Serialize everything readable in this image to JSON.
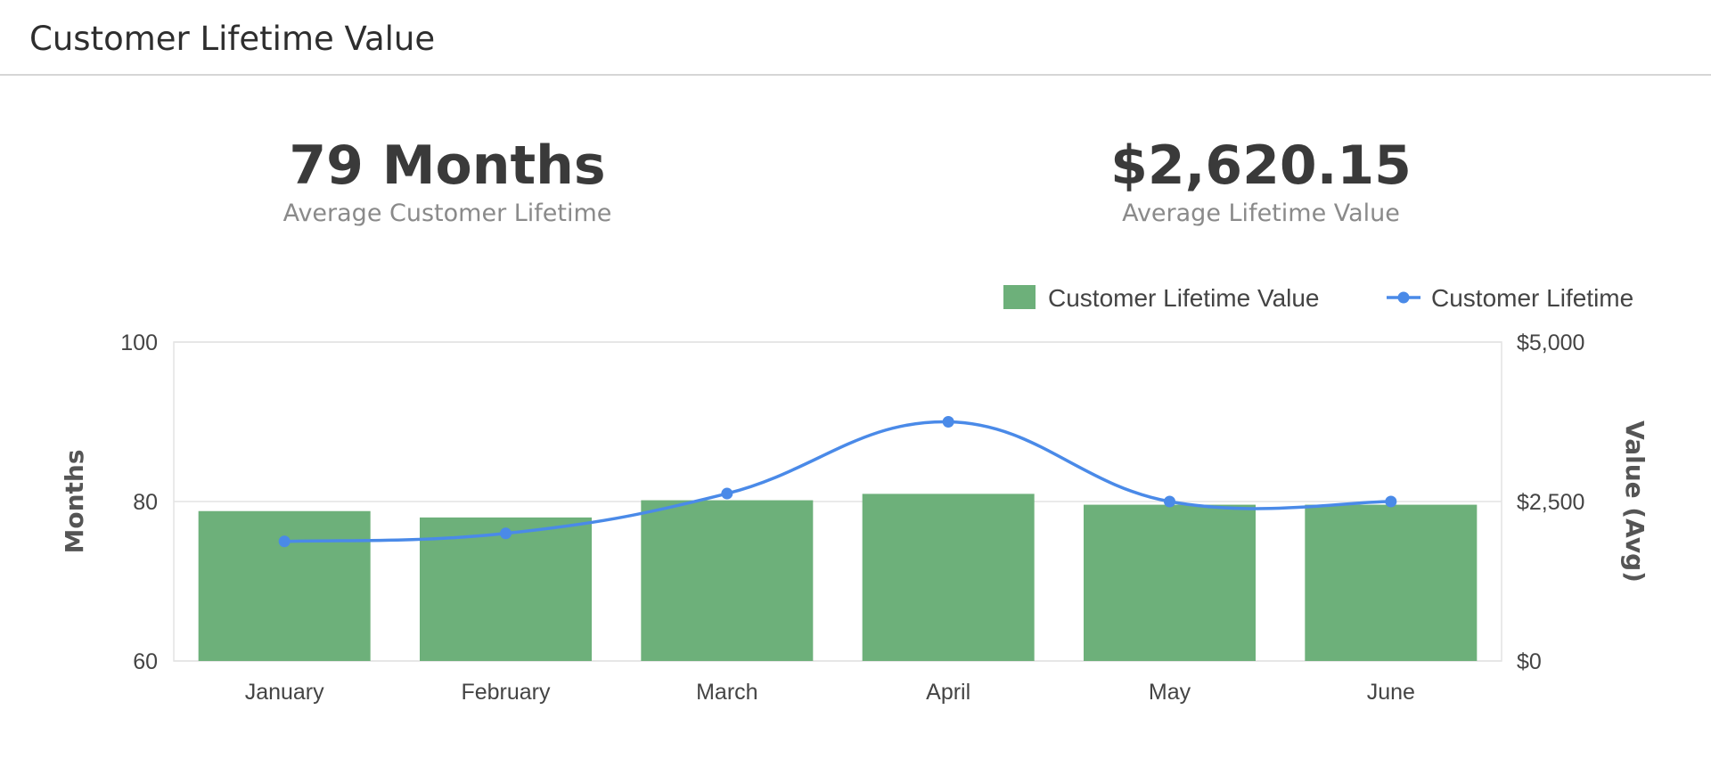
{
  "header": {
    "title": "Customer Lifetime Value"
  },
  "kpis": [
    {
      "value": "79 Months",
      "label": "Average Customer Lifetime"
    },
    {
      "value": "$2,620.15",
      "label": "Average Lifetime Value"
    }
  ],
  "chart_data": {
    "type": "bar",
    "title": "",
    "categories": [
      "January",
      "February",
      "March",
      "April",
      "May",
      "June"
    ],
    "series": [
      {
        "name": "Customer Lifetime Value",
        "type": "bar",
        "axis": "right",
        "values": [
          2350,
          2250,
          2520,
          2620,
          2450,
          2450
        ],
        "color": "#6db07a"
      },
      {
        "name": "Customer Lifetime",
        "type": "line",
        "axis": "left",
        "values": [
          75,
          76,
          81,
          90,
          80,
          80
        ],
        "color": "#4a8ae8"
      }
    ],
    "ylabel_left": "Months",
    "ylim_left": [
      60,
      100
    ],
    "yticks_left": [
      "60",
      "80",
      "100"
    ],
    "ylabel_right": "Value (Avg)",
    "ylim_right": [
      0,
      5000
    ],
    "yticks_right": [
      "$0",
      "$2,500",
      "$5,000"
    ],
    "grid": true,
    "legend": "top-right"
  }
}
